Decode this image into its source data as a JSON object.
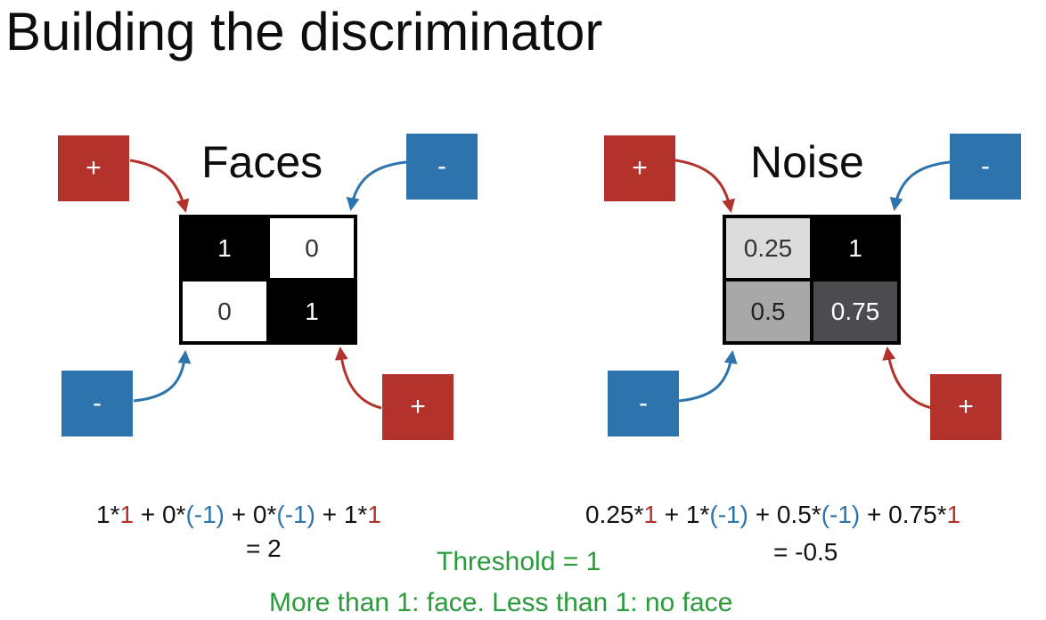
{
  "title": "Building the discriminator",
  "colors": {
    "plus": "#b3322c",
    "minus": "#2d74ad",
    "threshold_text": "#2b9a3c"
  },
  "faces": {
    "title": "Faces",
    "signs": {
      "top_left": "+",
      "top_right": "-",
      "bottom_left": "-",
      "bottom_right": "+"
    },
    "cells": [
      {
        "value": "1",
        "fill": "#000000",
        "text_color": "#ffffff"
      },
      {
        "value": "0",
        "fill": "#ffffff",
        "text_color": "#333333"
      },
      {
        "value": "0",
        "fill": "#ffffff",
        "text_color": "#333333"
      },
      {
        "value": "1",
        "fill": "#000000",
        "text_color": "#ffffff"
      }
    ],
    "equation": {
      "t1a": "1*",
      "t1b": "1",
      "op1": " + ",
      "t2a": "0*",
      "t2b": "(-1)",
      "op2": " + ",
      "t3a": "0*",
      "t3b": "(-1)",
      "op3": " + ",
      "t4a": "1*",
      "t4b": "1"
    },
    "result": "= 2"
  },
  "noise": {
    "title": "Noise",
    "signs": {
      "top_left": "+",
      "top_right": "-",
      "bottom_left": "-",
      "bottom_right": "+"
    },
    "cells": [
      {
        "value": "0.25",
        "fill": "#dcdcdc",
        "text_color": "#333333"
      },
      {
        "value": "1",
        "fill": "#000000",
        "text_color": "#ffffff"
      },
      {
        "value": "0.5",
        "fill": "#a8a8a8",
        "text_color": "#222222"
      },
      {
        "value": "0.75",
        "fill": "#4c4c4f",
        "text_color": "#ffffff"
      }
    ],
    "equation": {
      "t1a": "0.25*",
      "t1b": "1",
      "op1": " + ",
      "t2a": "1*",
      "t2b": "(-1)",
      "op2": " + ",
      "t3a": "0.5*",
      "t3b": "(-1)",
      "op3": " + ",
      "t4a": "0.75*",
      "t4b": "1"
    },
    "result": "= -0.5"
  },
  "threshold": "Threshold = 1",
  "rule": "More than 1: face. Less than 1: no face"
}
